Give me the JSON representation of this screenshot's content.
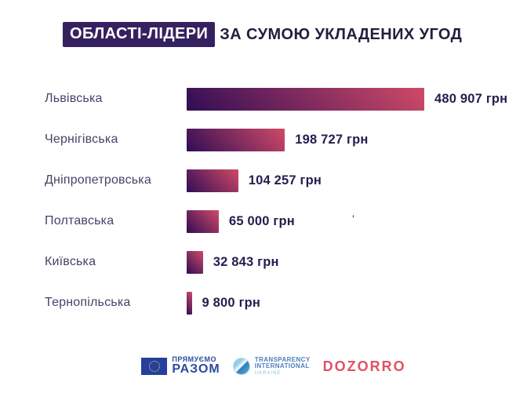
{
  "title": {
    "highlight": "ОБЛАСТІ-ЛІДЕРИ",
    "rest": "ЗА СУМОЮ УКЛАДЕНИХ УГОД"
  },
  "chart_data": {
    "type": "bar",
    "orientation": "horizontal",
    "title": "ОБЛАСТІ-ЛІДЕРИ ЗА СУМОЮ УКЛАДЕНИХ УГОД",
    "unit": "грн",
    "categories": [
      "Львівська",
      "Чернігівська",
      "Дніпропетровська",
      "Полтавська",
      "Київська",
      "Тернопільська"
    ],
    "values": [
      480907,
      198727,
      104257,
      65000,
      32843,
      9800
    ],
    "value_labels": [
      "480 907 грн",
      "198 727 грн",
      "104 257 грн",
      "65 000 грн",
      "32 843 грн",
      "9 800 грн"
    ],
    "xlim": [
      0,
      480907
    ],
    "grid": false,
    "legend": false,
    "bar_gradient": [
      "#300d55",
      "#d04a67"
    ]
  },
  "annotations": {
    "stray_mark": "‘"
  },
  "footer": {
    "eu_program": {
      "line1": "ПРЯМУЄМО",
      "line2": "РАЗОМ"
    },
    "transparency": {
      "line1": "TRANSPARENCY",
      "line2": "INTERNATIONAL",
      "line3": "UKRAINE"
    },
    "dozorro": "DOZORRO"
  },
  "colors": {
    "title-box-bg": "#35215f",
    "title-text": "#241e3f",
    "label-text": "#4a4169",
    "value-text": "#241d4e",
    "eu-blue": "#2d4a9f",
    "eu-flag-bg": "#24409c",
    "eu-star": "#f7d04b",
    "ti-blue": "#4a7fb8",
    "ti-light": "#8fc3dd",
    "dozorro-red": "#e05265"
  }
}
